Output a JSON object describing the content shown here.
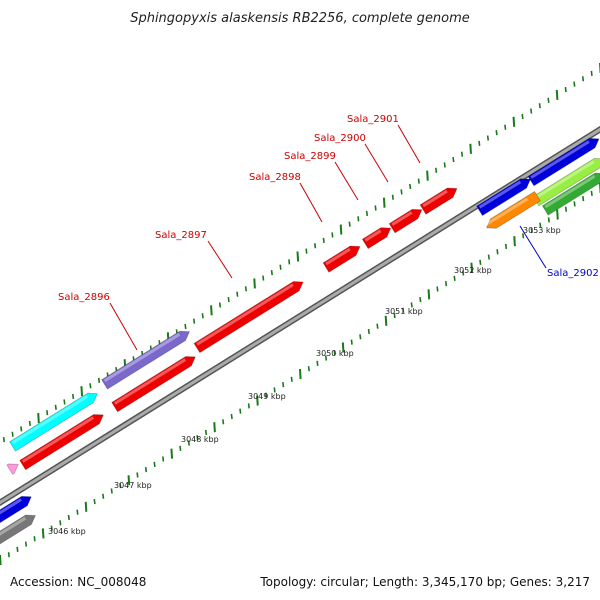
{
  "title": "Sphingopyxis alaskensis RB2256, complete genome",
  "accession": "Accession: NC_008048",
  "summary": "Topology: circular; Length: 3,345,170 bp; Genes: 3,217",
  "colors": {
    "gene_label_red": "#cc0000",
    "gene_label_blue": "#0000cc",
    "tick_green": "#1a7a1a",
    "backbone": "#8c8c8c"
  },
  "kbp_labels": [
    "3046 kbp",
    "3047 kbp",
    "3048 kbp",
    "3049 kbp",
    "3050 kbp",
    "3051 kbp",
    "3052 kbp",
    "3053 kbp"
  ],
  "genes": [
    {
      "name": "Sala_2896",
      "label_color": "#cc0000",
      "fill": "#ee0000"
    },
    {
      "name": "Sala_2897",
      "label_color": "#cc0000",
      "fill": "#ee0000"
    },
    {
      "name": "Sala_2898",
      "label_color": "#cc0000",
      "fill": "#ee0000"
    },
    {
      "name": "Sala_2899",
      "label_color": "#cc0000",
      "fill": "#ee0000"
    },
    {
      "name": "Sala_2900",
      "label_color": "#cc0000",
      "fill": "#ee0000"
    },
    {
      "name": "Sala_2901",
      "label_color": "#cc0000",
      "fill": "#ee0000"
    },
    {
      "name": "Sala_2902",
      "label_color": "#0000cc",
      "fill": "#ff8800"
    }
  ],
  "feature_colors": {
    "red": "#ee0000",
    "purple": "#7b68cc",
    "cyan": "#00ffff",
    "blue": "#0000dd",
    "orange": "#ff8800",
    "lightgreen": "#99ee44",
    "green": "#33aa33",
    "gray": "#777777",
    "pink": "#ff99dd"
  }
}
